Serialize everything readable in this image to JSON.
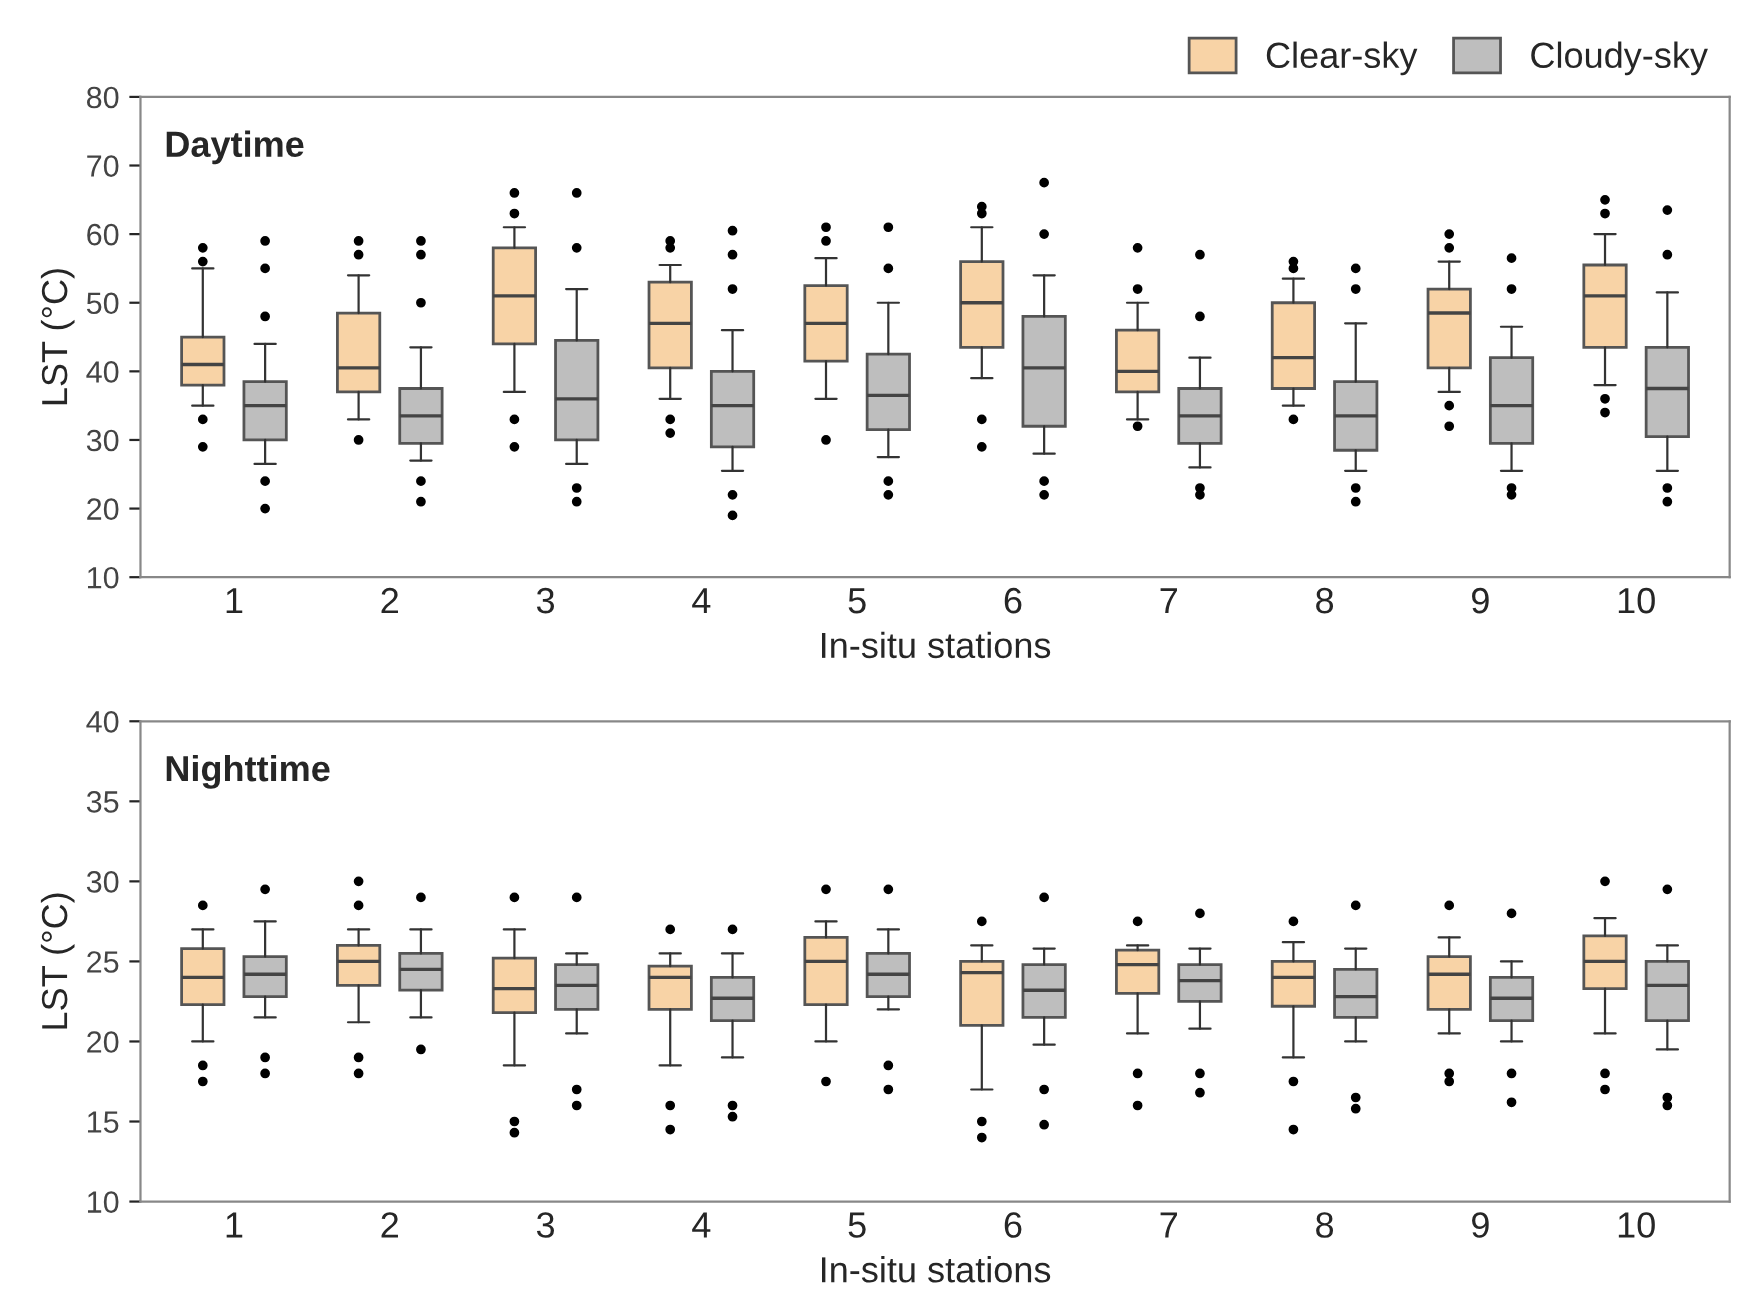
{
  "chart_data": [
    {
      "type": "box",
      "title": "Daytime",
      "xlabel": "In-situ stations",
      "ylabel": "LST (°C)",
      "categories": [
        "1",
        "2",
        "3",
        "4",
        "5",
        "6",
        "7",
        "8",
        "9",
        "10"
      ],
      "ylim": [
        10,
        80
      ],
      "yticks": [
        10,
        20,
        30,
        40,
        50,
        60,
        70,
        80
      ],
      "grid": false,
      "legend": "top right",
      "series": [
        {
          "name": "Clear-sky",
          "color": "#f8d3a6",
          "boxes": [
            {
              "low": 35,
              "q1": 38,
              "median": 41,
              "q3": 45,
              "high": 55,
              "outliers": [
                56,
                58,
                33,
                29
              ]
            },
            {
              "low": 33,
              "q1": 37,
              "median": 40.5,
              "q3": 48.5,
              "high": 54,
              "outliers": [
                57,
                59,
                30
              ]
            },
            {
              "low": 37,
              "q1": 44,
              "median": 51,
              "q3": 58,
              "high": 61,
              "outliers": [
                63,
                66,
                33,
                29
              ]
            },
            {
              "low": 36,
              "q1": 40.5,
              "median": 47,
              "q3": 53,
              "high": 55.5,
              "outliers": [
                58,
                59,
                33,
                31
              ]
            },
            {
              "low": 36,
              "q1": 41.5,
              "median": 47,
              "q3": 52.5,
              "high": 56.5,
              "outliers": [
                59,
                61,
                30
              ]
            },
            {
              "low": 39,
              "q1": 43.5,
              "median": 50,
              "q3": 56,
              "high": 61,
              "outliers": [
                63,
                64,
                33,
                29
              ]
            },
            {
              "low": 33,
              "q1": 37,
              "median": 40,
              "q3": 46,
              "high": 50,
              "outliers": [
                52,
                58,
                32
              ]
            },
            {
              "low": 35,
              "q1": 37.5,
              "median": 42,
              "q3": 50,
              "high": 53.5,
              "outliers": [
                55,
                56,
                33
              ]
            },
            {
              "low": 37,
              "q1": 40.5,
              "median": 48.5,
              "q3": 52,
              "high": 56,
              "outliers": [
                58,
                60,
                35,
                32
              ]
            },
            {
              "low": 38,
              "q1": 43.5,
              "median": 51,
              "q3": 55.5,
              "high": 60,
              "outliers": [
                63,
                65,
                36,
                34
              ]
            }
          ]
        },
        {
          "name": "Cloudy-sky",
          "color": "#bebebe",
          "boxes": [
            {
              "low": 26.5,
              "q1": 30,
              "median": 35,
              "q3": 38.5,
              "high": 44,
              "outliers": [
                48,
                55,
                59,
                24,
                20
              ]
            },
            {
              "low": 27,
              "q1": 29.5,
              "median": 33.5,
              "q3": 37.5,
              "high": 43.5,
              "outliers": [
                50,
                57,
                59,
                24,
                21
              ]
            },
            {
              "low": 26.5,
              "q1": 30,
              "median": 36,
              "q3": 44.5,
              "high": 52,
              "outliers": [
                58,
                66,
                23,
                21
              ]
            },
            {
              "low": 25.5,
              "q1": 29,
              "median": 35,
              "q3": 40,
              "high": 46,
              "outliers": [
                52,
                57,
                60.5,
                22,
                19
              ]
            },
            {
              "low": 27.5,
              "q1": 31.5,
              "median": 36.5,
              "q3": 42.5,
              "high": 50,
              "outliers": [
                55,
                61,
                24,
                22
              ]
            },
            {
              "low": 28,
              "q1": 32,
              "median": 40.5,
              "q3": 48,
              "high": 54,
              "outliers": [
                60,
                67.5,
                24,
                22
              ]
            },
            {
              "low": 26,
              "q1": 29.5,
              "median": 33.5,
              "q3": 37.5,
              "high": 42,
              "outliers": [
                48,
                57,
                23,
                22
              ]
            },
            {
              "low": 25.5,
              "q1": 28.5,
              "median": 33.5,
              "q3": 38.5,
              "high": 47,
              "outliers": [
                52,
                55,
                23,
                21
              ]
            },
            {
              "low": 25.5,
              "q1": 29.5,
              "median": 35,
              "q3": 42,
              "high": 46.5,
              "outliers": [
                52,
                56.5,
                23,
                22
              ]
            },
            {
              "low": 25.5,
              "q1": 30.5,
              "median": 37.5,
              "q3": 43.5,
              "high": 51.5,
              "outliers": [
                57,
                63.5,
                23,
                21
              ]
            }
          ]
        }
      ]
    },
    {
      "type": "box",
      "title": "Nighttime",
      "xlabel": "In-situ stations",
      "ylabel": "LST (°C)",
      "categories": [
        "1",
        "2",
        "3",
        "4",
        "5",
        "6",
        "7",
        "8",
        "9",
        "10"
      ],
      "ylim": [
        10,
        40
      ],
      "yticks": [
        10,
        15,
        20,
        25,
        30,
        35,
        40
      ],
      "grid": false,
      "series": [
        {
          "color": "#f8d3a6",
          "boxes": [
            {
              "low": 20,
              "q1": 22.3,
              "median": 24,
              "q3": 25.8,
              "high": 27,
              "outliers": [
                28.5,
                18.5,
                17.5
              ]
            },
            {
              "low": 21.2,
              "q1": 23.5,
              "median": 25,
              "q3": 26,
              "high": 27,
              "outliers": [
                28.5,
                30,
                19,
                18
              ]
            },
            {
              "low": 18.5,
              "q1": 21.8,
              "median": 23.3,
              "q3": 25.2,
              "high": 27,
              "outliers": [
                29,
                15,
                14.3
              ]
            },
            {
              "low": 18.5,
              "q1": 22,
              "median": 24,
              "q3": 24.7,
              "high": 25.5,
              "outliers": [
                27,
                16,
                14.5
              ]
            },
            {
              "low": 20,
              "q1": 22.3,
              "median": 25,
              "q3": 26.5,
              "high": 27.5,
              "outliers": [
                29.5,
                17.5
              ]
            },
            {
              "low": 17,
              "q1": 21,
              "median": 24.3,
              "q3": 25,
              "high": 26,
              "outliers": [
                27.5,
                15,
                14
              ]
            },
            {
              "low": 20.5,
              "q1": 23,
              "median": 24.8,
              "q3": 25.7,
              "high": 26,
              "outliers": [
                27.5,
                18,
                16
              ]
            },
            {
              "low": 19,
              "q1": 22.2,
              "median": 24,
              "q3": 25,
              "high": 26.2,
              "outliers": [
                27.5,
                17.5,
                14.5
              ]
            },
            {
              "low": 20.5,
              "q1": 22,
              "median": 24.2,
              "q3": 25.3,
              "high": 26.5,
              "outliers": [
                28.5,
                18,
                17.5
              ]
            },
            {
              "low": 20.5,
              "q1": 23.3,
              "median": 25,
              "q3": 26.6,
              "high": 27.7,
              "outliers": [
                30,
                18,
                17
              ]
            }
          ]
        },
        {
          "color": "#bebebe",
          "boxes": [
            {
              "low": 21.5,
              "q1": 22.8,
              "median": 24.2,
              "q3": 25.3,
              "high": 27.5,
              "outliers": [
                29.5,
                19,
                18
              ]
            },
            {
              "low": 21.5,
              "q1": 23.2,
              "median": 24.5,
              "q3": 25.5,
              "high": 27,
              "outliers": [
                29,
                19.5
              ]
            },
            {
              "low": 20.5,
              "q1": 22,
              "median": 23.5,
              "q3": 24.8,
              "high": 25.5,
              "outliers": [
                29,
                17,
                16
              ]
            },
            {
              "low": 19,
              "q1": 21.3,
              "median": 22.7,
              "q3": 24,
              "high": 25.5,
              "outliers": [
                27,
                16,
                15.3
              ]
            },
            {
              "low": 22,
              "q1": 22.8,
              "median": 24.2,
              "q3": 25.5,
              "high": 27,
              "outliers": [
                29.5,
                18.5,
                17
              ]
            },
            {
              "low": 19.8,
              "q1": 21.5,
              "median": 23.2,
              "q3": 24.8,
              "high": 25.8,
              "outliers": [
                29,
                17,
                14.8
              ]
            },
            {
              "low": 20.8,
              "q1": 22.5,
              "median": 23.8,
              "q3": 24.8,
              "high": 25.8,
              "outliers": [
                28,
                18,
                16.8
              ]
            },
            {
              "low": 20,
              "q1": 21.5,
              "median": 22.8,
              "q3": 24.5,
              "high": 25.8,
              "outliers": [
                28.5,
                16.5,
                15.8
              ]
            },
            {
              "low": 20,
              "q1": 21.3,
              "median": 22.7,
              "q3": 24,
              "high": 25,
              "outliers": [
                28,
                18,
                16.2
              ]
            },
            {
              "low": 19.5,
              "q1": 21.3,
              "median": 23.5,
              "q3": 25,
              "high": 26,
              "outliers": [
                29.5,
                16.5,
                16
              ]
            }
          ]
        }
      ]
    }
  ]
}
